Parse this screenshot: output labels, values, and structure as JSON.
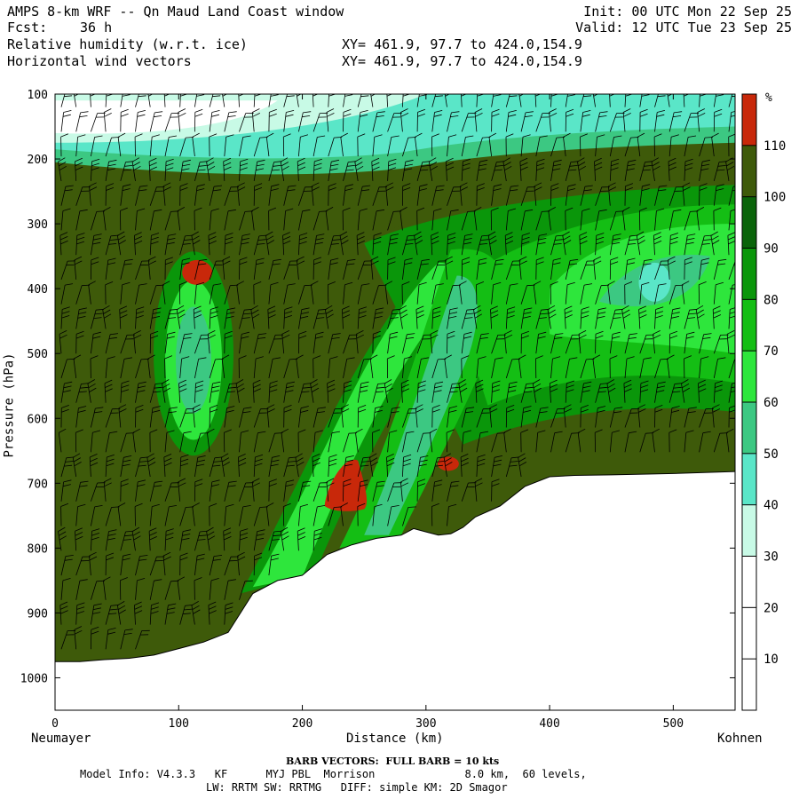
{
  "header": {
    "title": "AMPS 8-km WRF -- Qn Maud Land Coast window",
    "forecast_label": "Fcst:",
    "forecast_value": "36 h",
    "field1": "Relative humidity (w.r.t. ice)",
    "field2": "Horizontal wind vectors",
    "xy1": "XY= 461.9, 97.7 to 424.0,154.9",
    "xy2": "XY= 461.9, 97.7 to 424.0,154.9",
    "init": "Init: 00 UTC Mon 22 Sep 25",
    "valid": "Valid: 12 UTC Tue 23 Sep 25"
  },
  "chart_data": {
    "type": "heatmap",
    "title": "Relative humidity (w.r.t. ice) cross-section with horizontal wind vectors",
    "xlabel": "Distance (km)",
    "ylabel": "Pressure (hPa)",
    "xlim": [
      0,
      550
    ],
    "ylim": [
      1050,
      100
    ],
    "x_ticks": [
      0,
      100,
      200,
      300,
      400,
      500
    ],
    "y_ticks": [
      100,
      200,
      300,
      400,
      500,
      600,
      700,
      800,
      900,
      1000
    ],
    "left_endpoint": "Neumayer",
    "right_endpoint": "Kohnen",
    "colorbar": {
      "unit": "%",
      "levels": [
        10,
        20,
        30,
        40,
        50,
        60,
        70,
        80,
        90,
        100,
        110
      ],
      "colors": [
        "#ffffff",
        "#ffffff",
        "#ffffff",
        "#c8fae6",
        "#5ae6c8",
        "#3cc882",
        "#2ee63c",
        "#14be14",
        "#0a960a",
        "#0a640a",
        "#3e5a0a",
        "#c8280a"
      ]
    },
    "terrain_km": [
      0,
      20,
      40,
      60,
      80,
      100,
      120,
      140,
      160,
      180,
      200,
      220,
      240,
      260,
      280,
      290,
      300,
      310,
      320,
      330,
      340,
      360,
      380,
      400,
      420,
      450,
      500,
      550
    ],
    "terrain_hpa": [
      975,
      975,
      972,
      970,
      965,
      955,
      945,
      930,
      870,
      850,
      842,
      810,
      795,
      785,
      780,
      770,
      775,
      780,
      778,
      768,
      752,
      735,
      705,
      690,
      688,
      687,
      685,
      682
    ],
    "rh_features": [
      {
        "name": "dry upper layer",
        "rh": 35
      },
      {
        "name": "moist band 300-250 hPa",
        "rh": 105
      },
      {
        "name": "supersaturated pocket ~360 hPa",
        "rh": 115
      },
      {
        "name": "dry slot near 110 km",
        "rh": 55
      },
      {
        "name": "supersaturated pockets near 700 hPa",
        "rh": 115
      }
    ],
    "barb_note": "BARB VECTORS:  FULL BARB = 10 kts"
  },
  "footer": {
    "barb_text": "BARB VECTORS:  FULL BARB = 10 kts",
    "model_line1": "Model Info: V4.3.3   KF      MYJ PBL  Morrison              8.0 km,  60 levels,",
    "model_line2": "LW: RRTM SW: RRTMG   DIFF: simple KM: 2D Smagor"
  }
}
